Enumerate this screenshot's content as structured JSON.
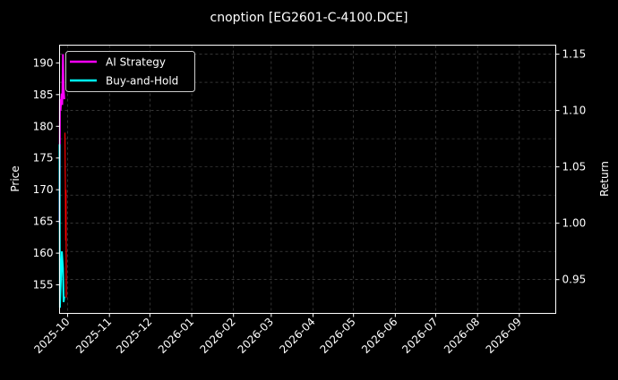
{
  "chart_data": {
    "type": "line",
    "title": "cnoption [EG2601-C-4100.DCE]",
    "ylabel_left": "Price",
    "ylabel_right": "Return",
    "xlabel": "",
    "xlim": [
      "2025-09-25",
      "2026-09-28"
    ],
    "ylim_left": [
      150.5,
      192.8
    ],
    "ylim_right": [
      0.92,
      1.158
    ],
    "x_ticks": [
      "2025-10",
      "2025-11",
      "2025-12",
      "2026-01",
      "2026-02",
      "2026-03",
      "2026-04",
      "2026-05",
      "2026-06",
      "2026-07",
      "2026-08",
      "2026-09"
    ],
    "y_ticks_left": [
      155,
      160,
      165,
      170,
      175,
      180,
      185,
      190
    ],
    "y_ticks_right": [
      "0.95",
      "1.00",
      "1.05",
      "1.10",
      "1.15"
    ],
    "grid": true,
    "legend_placement": "upper-left",
    "background": "#000000",
    "series": [
      {
        "name": "AI Strategy",
        "axis": "right",
        "color": "#ff00ff",
        "points": [
          [
            "2025-09-25T00:00",
            1.0
          ],
          [
            "2025-09-25T06:00",
            1.11
          ],
          [
            "2025-09-25T18:00",
            1.1
          ],
          [
            "2025-09-26T12:00",
            1.115
          ],
          [
            "2025-09-27T00:00",
            1.105
          ],
          [
            "2025-09-27T12:00",
            1.15
          ],
          [
            "2025-09-28T00:00",
            1.12
          ],
          [
            "2025-09-28T12:00",
            1.11
          ]
        ]
      },
      {
        "name": "Buy-and-Hold",
        "axis": "right",
        "color": "#00ffff",
        "points": [
          [
            "2025-09-25T00:00",
            1.07
          ],
          [
            "2025-09-25T06:00",
            0.925
          ],
          [
            "2025-09-26T00:00",
            0.95
          ],
          [
            "2025-09-26T18:00",
            0.975
          ],
          [
            "2025-09-27T12:00",
            0.96
          ],
          [
            "2025-09-28T00:00",
            0.93
          ],
          [
            "2025-09-28T12:00",
            0.935
          ]
        ]
      },
      {
        "axis": "left",
        "color": "#ff0000",
        "points": [
          [
            "2025-09-29T00:00",
            179
          ],
          [
            "2025-09-29T04:00",
            173
          ],
          [
            "2025-09-29T08:00",
            171
          ],
          [
            "2025-09-29T12:00",
            162
          ],
          [
            "2025-09-29T18:00",
            170
          ],
          [
            "2025-09-30T00:00",
            153
          ]
        ]
      }
    ]
  }
}
